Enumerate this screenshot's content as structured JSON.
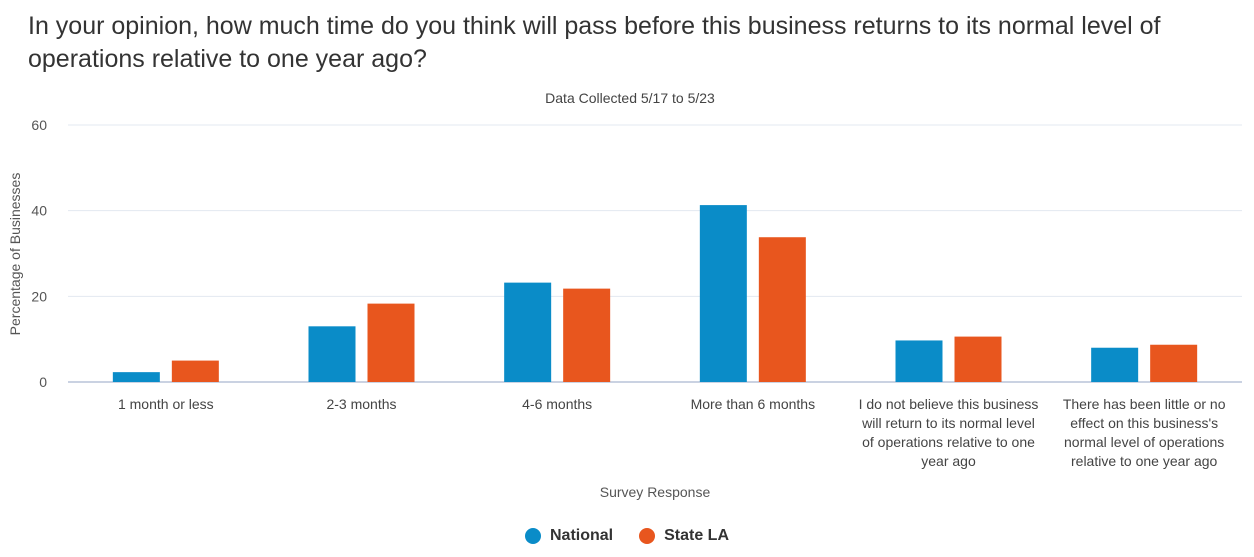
{
  "chart_data": {
    "type": "bar",
    "title": "In your opinion, how much time do you think will pass before this business returns to its normal level of operations relative to one year ago?",
    "subtitle": "Data Collected 5/17 to 5/23",
    "xlabel": "Survey Response",
    "ylabel": "Percentage of Businesses",
    "ylim": [
      0,
      60
    ],
    "yticks": [
      0,
      20,
      40,
      60
    ],
    "grid": true,
    "legend_position": "bottom",
    "categories": [
      "1 month or less",
      "2-3 months",
      "4-6 months",
      "More than 6 months",
      "I do not believe this business will return to its normal level of operations relative to one year ago",
      "There has been little or no effect on this business's normal level of operations relative to one year ago"
    ],
    "category_lines": [
      [
        "1 month or less"
      ],
      [
        "2-3 months"
      ],
      [
        "4-6 months"
      ],
      [
        "More than 6 months"
      ],
      [
        "I do not believe this business",
        "will return to its normal level",
        "of operations relative to one",
        "year ago"
      ],
      [
        "There has been little or no",
        "effect on this business's",
        "normal level of operations",
        "relative to one year ago"
      ]
    ],
    "series": [
      {
        "name": "National",
        "color": "#0a8cc8",
        "values": [
          2.3,
          13.0,
          23.2,
          41.3,
          9.7,
          8.0
        ]
      },
      {
        "name": "State LA",
        "color": "#e8561e",
        "values": [
          5.0,
          18.3,
          21.8,
          33.8,
          10.6,
          8.7
        ]
      }
    ]
  }
}
